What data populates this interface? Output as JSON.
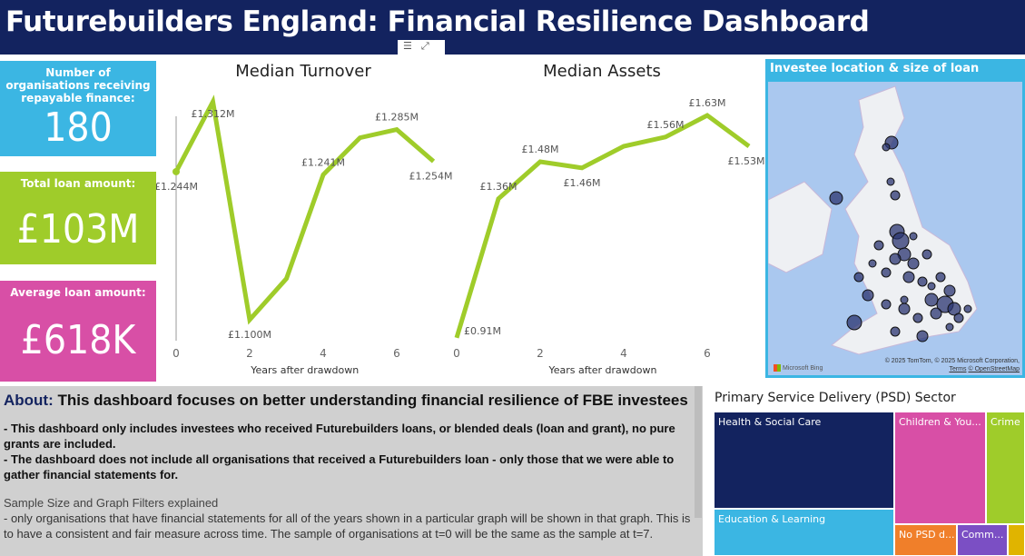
{
  "header": {
    "title": "Futurebuilders England: Financial Resilience Dashboard"
  },
  "kpis": [
    {
      "label": "Number of organisations receiving repayable finance:",
      "value": "180",
      "color": "#3bb6e3"
    },
    {
      "label": "Total loan amount:",
      "value": "£103M",
      "color": "#9fcc2a"
    },
    {
      "label": "Average loan amount:",
      "value": "£618K",
      "color": "#d84fa6"
    }
  ],
  "chart_data": [
    {
      "type": "line",
      "title": "Median Turnover",
      "xlabel": "Years after drawdown",
      "x": [
        0,
        1,
        2,
        3,
        4,
        5,
        6,
        7
      ],
      "values": [
        1.244,
        1.312,
        1.1,
        1.14,
        1.241,
        1.277,
        1.285,
        1.254
      ],
      "labels": [
        "£1.244M",
        "£1.312M",
        "£1.100M",
        "",
        "£1.241M",
        "",
        "£1.285M",
        "£1.254M"
      ],
      "xticks": [
        "0",
        "2",
        "4",
        "6"
      ],
      "color": "#9fcc2a"
    },
    {
      "type": "line",
      "title": "Median Assets",
      "xlabel": "Years after drawdown",
      "x": [
        0,
        1,
        2,
        3,
        4,
        5,
        6,
        7
      ],
      "values": [
        0.91,
        1.36,
        1.48,
        1.46,
        1.53,
        1.56,
        1.63,
        1.53
      ],
      "labels": [
        "£0.91M",
        "£1.36M",
        "£1.48M",
        "£1.46M",
        "",
        "£1.56M",
        "£1.63M",
        "£1.53M"
      ],
      "xticks": [
        "0",
        "2",
        "4",
        "6"
      ],
      "color": "#9fcc2a"
    }
  ],
  "map": {
    "title": "Investee location & size of loan",
    "attribution": "© 2025 TomTom, © 2025 Microsoft Corporation,",
    "terms": "Terms",
    "osm": "© OpenStreetMap",
    "bing": "Microsoft Bing"
  },
  "about": {
    "heading_prefix": "About:",
    "heading": " This dashboard focuses on better understanding financial resilience of FBE investees",
    "bullet1": "- This dashboard only includes investees who received Futurebuilders loans, or blended deals (loan and grant), no pure grants are included.",
    "bullet2": "- The dashboard does not include all organisations that received a Futurebuilders loan - only those that we were able to gather financial statements for.",
    "subheading": "Sample Size and Graph Filters explained",
    "note": "- only organisations that have financial statements for all of the years shown in a particular graph will be shown in that graph. This is to have a consistent and fair measure across time. The sample of organisations at t=0 will be the same as the sample at t=7."
  },
  "psd": {
    "title": "Primary Service Delivery (PSD) Sector",
    "tiles": [
      {
        "label": "Health & Social Care",
        "color": "#13235f"
      },
      {
        "label": "Education & Learning",
        "color": "#3bb6e3"
      },
      {
        "label": "Children & You...",
        "color": "#d84fa6"
      },
      {
        "label": "Crime",
        "color": "#9fcc2a"
      },
      {
        "label": "No PSD d...",
        "color": "#f07f2a"
      },
      {
        "label": "Comm...",
        "color": "#7b4fc4"
      },
      {
        "label": "",
        "color": "#e0b400"
      }
    ]
  }
}
